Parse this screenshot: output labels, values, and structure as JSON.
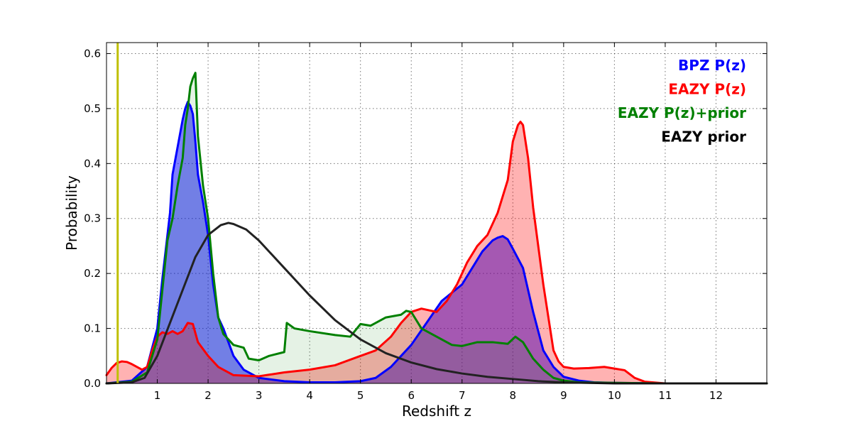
{
  "chart_data": {
    "type": "area",
    "title": "",
    "xlabel": "Redshift z",
    "ylabel": "Probability",
    "xlim": [
      0,
      13
    ],
    "ylim": [
      0,
      0.62
    ],
    "xticks": [
      1,
      2,
      3,
      4,
      5,
      6,
      7,
      8,
      9,
      10,
      11,
      12
    ],
    "xtick_labels": [
      "1",
      "2",
      "3",
      "4",
      "5",
      "6",
      "7",
      "8",
      "9",
      "10",
      "11",
      "12"
    ],
    "yticks": [
      0.0,
      0.1,
      0.2,
      0.3,
      0.4,
      0.5,
      0.6
    ],
    "ytick_labels": [
      "0.0",
      "0.1",
      "0.2",
      "0.3",
      "0.4",
      "0.5",
      "0.6"
    ],
    "grid": true,
    "legend_position": "top-right",
    "reference_line": {
      "x": 0.22,
      "color": "#bfbf00"
    },
    "series": [
      {
        "name": "BPZ P(z)",
        "color": "#0000ff",
        "fill": "#0000ff",
        "fill_opacity": 0.5,
        "x": [
          0,
          0.5,
          0.8,
          1.0,
          1.1,
          1.2,
          1.25,
          1.3,
          1.4,
          1.5,
          1.55,
          1.6,
          1.65,
          1.7,
          1.75,
          1.8,
          1.9,
          2.0,
          2.1,
          2.2,
          2.3,
          2.5,
          2.7,
          3.0,
          3.5,
          4.0,
          4.5,
          5.0,
          5.3,
          5.6,
          6.0,
          6.3,
          6.6,
          6.8,
          7.0,
          7.2,
          7.4,
          7.6,
          7.7,
          7.8,
          7.9,
          8.0,
          8.2,
          8.4,
          8.6,
          8.8,
          9.0,
          9.3,
          9.6,
          10,
          11,
          12,
          13
        ],
        "y": [
          0,
          0.005,
          0.03,
          0.1,
          0.19,
          0.27,
          0.31,
          0.38,
          0.43,
          0.48,
          0.5,
          0.512,
          0.505,
          0.49,
          0.44,
          0.38,
          0.33,
          0.27,
          0.18,
          0.12,
          0.1,
          0.05,
          0.025,
          0.01,
          0.004,
          0.002,
          0.002,
          0.004,
          0.01,
          0.03,
          0.07,
          0.11,
          0.15,
          0.165,
          0.18,
          0.21,
          0.24,
          0.26,
          0.265,
          0.268,
          0.262,
          0.245,
          0.21,
          0.13,
          0.06,
          0.03,
          0.012,
          0.005,
          0.002,
          0.001,
          0,
          0,
          0
        ]
      },
      {
        "name": "EAZY P(z)",
        "color": "#ff0000",
        "fill": "#ff0000",
        "fill_opacity": 0.3,
        "x": [
          0,
          0.1,
          0.2,
          0.3,
          0.4,
          0.5,
          0.6,
          0.7,
          0.8,
          0.9,
          1.0,
          1.1,
          1.2,
          1.3,
          1.4,
          1.5,
          1.6,
          1.7,
          1.8,
          2.0,
          2.2,
          2.5,
          3.0,
          3.5,
          4.0,
          4.5,
          5.0,
          5.3,
          5.6,
          5.8,
          6.0,
          6.2,
          6.5,
          6.7,
          6.9,
          7.1,
          7.3,
          7.5,
          7.7,
          7.9,
          8.0,
          8.1,
          8.15,
          8.2,
          8.3,
          8.4,
          8.6,
          8.8,
          8.9,
          9.0,
          9.2,
          9.5,
          9.8,
          10.0,
          10.2,
          10.4,
          10.6,
          11,
          12,
          13
        ],
        "y": [
          0.015,
          0.028,
          0.037,
          0.04,
          0.039,
          0.035,
          0.03,
          0.025,
          0.03,
          0.06,
          0.085,
          0.093,
          0.09,
          0.095,
          0.09,
          0.095,
          0.11,
          0.108,
          0.075,
          0.05,
          0.03,
          0.015,
          0.013,
          0.02,
          0.025,
          0.033,
          0.05,
          0.06,
          0.085,
          0.11,
          0.13,
          0.136,
          0.13,
          0.15,
          0.18,
          0.22,
          0.25,
          0.27,
          0.31,
          0.37,
          0.44,
          0.47,
          0.476,
          0.47,
          0.41,
          0.32,
          0.18,
          0.06,
          0.04,
          0.03,
          0.027,
          0.028,
          0.03,
          0.027,
          0.024,
          0.01,
          0.003,
          0,
          0,
          0
        ]
      },
      {
        "name": "EAZY P(z)+prior",
        "color": "#008000",
        "fill": "#008000",
        "fill_opacity": 0.1,
        "x": [
          0,
          0.5,
          0.8,
          1.0,
          1.1,
          1.2,
          1.3,
          1.4,
          1.5,
          1.55,
          1.6,
          1.65,
          1.7,
          1.75,
          1.8,
          1.9,
          2.0,
          2.1,
          2.2,
          2.3,
          2.5,
          2.7,
          2.8,
          3.0,
          3.2,
          3.5,
          3.55,
          3.7,
          4.0,
          4.5,
          4.8,
          5.0,
          5.2,
          5.5,
          5.8,
          5.9,
          6.0,
          6.2,
          6.5,
          6.8,
          7.0,
          7.3,
          7.6,
          7.9,
          8.05,
          8.2,
          8.4,
          8.6,
          8.8,
          9.0,
          9.3,
          10,
          11,
          12,
          13
        ],
        "y": [
          0,
          0.003,
          0.02,
          0.08,
          0.17,
          0.26,
          0.3,
          0.36,
          0.41,
          0.47,
          0.5,
          0.54,
          0.555,
          0.565,
          0.45,
          0.36,
          0.3,
          0.2,
          0.12,
          0.09,
          0.07,
          0.065,
          0.045,
          0.042,
          0.05,
          0.057,
          0.11,
          0.1,
          0.095,
          0.088,
          0.085,
          0.108,
          0.105,
          0.12,
          0.125,
          0.132,
          0.13,
          0.1,
          0.085,
          0.07,
          0.068,
          0.075,
          0.075,
          0.072,
          0.085,
          0.075,
          0.045,
          0.025,
          0.01,
          0.005,
          0.002,
          0.001,
          0,
          0,
          0
        ]
      },
      {
        "name": "EAZY prior",
        "color": "#222222",
        "fill": "none",
        "fill_opacity": 0,
        "x": [
          0,
          0.5,
          0.75,
          1.0,
          1.25,
          1.5,
          1.75,
          2.0,
          2.25,
          2.4,
          2.5,
          2.75,
          3.0,
          3.5,
          4.0,
          4.5,
          5.0,
          5.5,
          6.0,
          6.5,
          7.0,
          7.5,
          8.0,
          8.5,
          9.0,
          9.5,
          10.0,
          11,
          12,
          13
        ],
        "y": [
          0,
          0.002,
          0.01,
          0.05,
          0.11,
          0.17,
          0.23,
          0.27,
          0.288,
          0.292,
          0.29,
          0.28,
          0.26,
          0.21,
          0.16,
          0.115,
          0.08,
          0.055,
          0.038,
          0.026,
          0.018,
          0.012,
          0.008,
          0.004,
          0.002,
          0.001,
          0,
          0,
          0,
          0
        ]
      }
    ]
  }
}
